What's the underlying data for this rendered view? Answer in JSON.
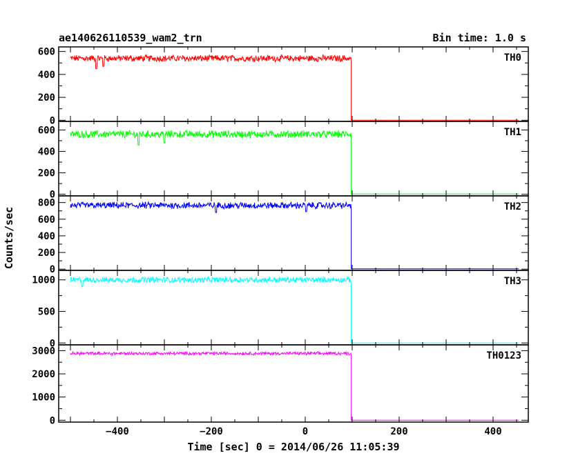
{
  "chart_data": {
    "type": "line",
    "title": "ae140626110539_wam2_trn",
    "bin_time_label": "Bin time: 1.0 s",
    "xlabel": "Time [sec] 0 = 2014/06/26 11:05:39",
    "ylabel": "Counts/sec",
    "xlim": [
      -525,
      475
    ],
    "x_ticks": [
      -400,
      -200,
      0,
      200,
      400
    ],
    "x_tick_labels": [
      "−400",
      "−200",
      "0",
      "200",
      "400"
    ],
    "cutoff_time": 98,
    "data_start": -500,
    "data_end": 455,
    "panels": [
      {
        "name": "TH0",
        "color": "#ff0000",
        "ylim": [
          -10,
          640
        ],
        "yticks": [
          0,
          200,
          400,
          600
        ],
        "ytick_labels": [
          "0",
          "200",
          "400",
          "600"
        ],
        "level_before": 540,
        "level_after": 0,
        "noise": 25,
        "low_dips": [
          [
            -445,
            450
          ],
          [
            -430,
            470
          ]
        ]
      },
      {
        "name": "TH1",
        "color": "#00ff00",
        "ylim": [
          -15,
          680
        ],
        "yticks": [
          0,
          200,
          400,
          600
        ],
        "ytick_labels": [
          "0",
          "200",
          "400",
          "600"
        ],
        "level_before": 560,
        "level_after": 3,
        "noise": 30,
        "low_dips": [
          [
            -355,
            460
          ],
          [
            -300,
            480
          ]
        ]
      },
      {
        "name": "TH2",
        "color": "#0000ff",
        "ylim": [
          -15,
          880
        ],
        "yticks": [
          0,
          200,
          400,
          600,
          800
        ],
        "ytick_labels": [
          "0",
          "200",
          "400",
          "600",
          "800"
        ],
        "level_before": 765,
        "level_after": 3,
        "noise": 35,
        "low_dips": [
          [
            -190,
            680
          ],
          [
            2,
            690
          ]
        ]
      },
      {
        "name": "TH3",
        "color": "#00ffff",
        "ylim": [
          -30,
          1150
        ],
        "yticks": [
          0,
          500,
          1000
        ],
        "ytick_labels": [
          "0",
          "500",
          "1000"
        ],
        "level_before": 1000,
        "level_after": 0,
        "noise": 40,
        "low_dips": [
          [
            -475,
            890
          ]
        ]
      },
      {
        "name": "TH0123",
        "color": "#ff00ff",
        "ylim": [
          -80,
          3250
        ],
        "yticks": [
          0,
          1000,
          2000,
          3000
        ],
        "ytick_labels": [
          "0",
          "1000",
          "2000",
          "3000"
        ],
        "level_before": 2880,
        "level_after": 0,
        "noise": 60,
        "low_dips": []
      }
    ]
  }
}
